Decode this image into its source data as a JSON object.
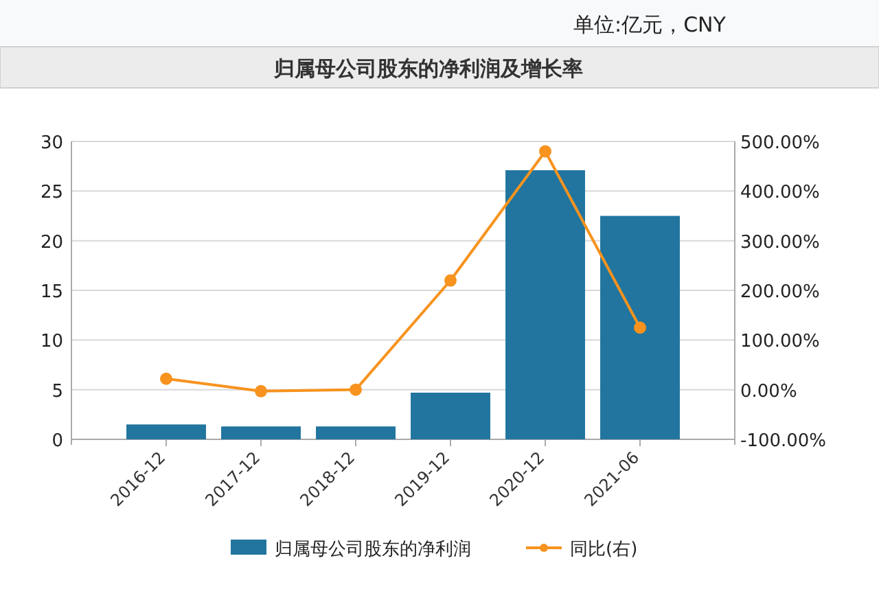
{
  "chart_data": {
    "type": "bar",
    "title": "归属母公司股东的净利润及增长率",
    "annotations": [
      "单位:亿元，CNY"
    ],
    "categories": [
      "2016-12",
      "2017-12",
      "2018-12",
      "2019-12",
      "2020-12",
      "2021-06"
    ],
    "series": [
      {
        "name": "归属母公司股东的净利润",
        "color": "#21759f",
        "values": [
          1.5,
          1.3,
          1.3,
          4.7,
          27.1,
          22.5
        ]
      },
      {
        "name": "同比(右)",
        "type": "line",
        "axis": "y2",
        "color": "#f7931e",
        "marker": "circle",
        "values": [
          22,
          -3,
          0,
          220,
          480,
          125
        ]
      }
    ],
    "ylim": [
      0,
      30
    ],
    "yticks": [
      0,
      5,
      10,
      15,
      20,
      25,
      30
    ],
    "y2lim": [
      -100,
      500
    ],
    "y2ticks": [
      {
        "value": -100,
        "label": "-100.00%"
      },
      {
        "value": 0,
        "label": "0.00%"
      },
      {
        "value": 100,
        "label": "100.00%"
      },
      {
        "value": 200,
        "label": "200.00%"
      },
      {
        "value": 300,
        "label": "300.00%"
      },
      {
        "value": 400,
        "label": "400.00%"
      },
      {
        "value": 500,
        "label": "500.00%"
      }
    ],
    "grid": "y",
    "legend": "bottom"
  }
}
